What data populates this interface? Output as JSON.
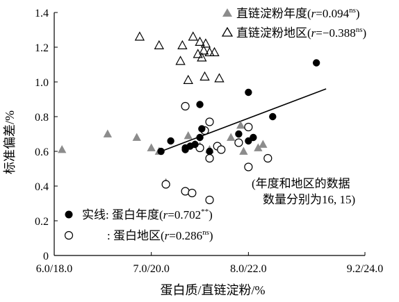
{
  "chart_data": {
    "type": "scatter",
    "xlabel": "蛋白质/直链淀粉/%",
    "ylabel": "标准偏差/%",
    "x_ticks": [
      "6.0/18.0",
      "7.0/20.0",
      "8.0/22.0",
      "9.2/24.0"
    ],
    "x_tick_values": [
      6.0,
      7.0,
      8.0,
      9.2
    ],
    "xlim": [
      6.0,
      9.2
    ],
    "y_ticks": [
      "0",
      "0.2",
      "0.4",
      "0.6",
      "0.8",
      "1.0",
      "1.2",
      "1.4"
    ],
    "y_tick_values": [
      0,
      0.2,
      0.4,
      0.6,
      0.8,
      1.0,
      1.2,
      1.4
    ],
    "ylim": [
      0,
      1.4
    ],
    "x_axis_note": "x values expressed on the protein (%) scale; amylose scale shown in tick labels after the slash",
    "legend_top": {
      "amylose_year": {
        "label_pre": "直链淀粉年度(",
        "r_symbol": "r",
        "r_value": "=0.094",
        "sig": "ns",
        "label_post": ")"
      },
      "amylose_region": {
        "label_pre": "直链淀粉地区(",
        "r_symbol": "r",
        "r_value": "=−0.388",
        "sig": "ns",
        "label_post": ")"
      }
    },
    "legend_bottom": {
      "protein_year": {
        "label_pre": "实线: 蛋白年度(",
        "r_symbol": "r",
        "r_value": "=0.702",
        "sig": "**",
        "label_post": ")"
      },
      "protein_region": {
        "label_pre": ": 蛋白地区(",
        "r_symbol": "r",
        "r_value": "=0.286",
        "sig": "ns",
        "label_post": ")"
      }
    },
    "note_lines": [
      "(年度和地区的数据",
      "数量分别为16, 15)"
    ],
    "trendline": {
      "x": [
        7.1,
        8.8
      ],
      "y": [
        0.6,
        0.96
      ]
    },
    "series": [
      {
        "key": "protein_year",
        "marker": "filled-circle",
        "points": [
          [
            7.1,
            0.6
          ],
          [
            7.2,
            0.66
          ],
          [
            7.35,
            0.61
          ],
          [
            7.4,
            0.63
          ],
          [
            7.45,
            0.64
          ],
          [
            7.5,
            0.68
          ],
          [
            7.52,
            0.73
          ],
          [
            7.5,
            0.87
          ],
          [
            7.6,
            0.6
          ],
          [
            7.9,
            0.7
          ],
          [
            8.0,
            0.66
          ],
          [
            8.0,
            0.94
          ],
          [
            8.05,
            0.68
          ],
          [
            8.25,
            0.8
          ],
          [
            8.7,
            1.11
          ],
          [
            7.35,
            0.62
          ]
        ]
      },
      {
        "key": "protein_region",
        "marker": "open-circle",
        "points": [
          [
            7.15,
            0.41
          ],
          [
            7.35,
            0.86
          ],
          [
            7.35,
            0.37
          ],
          [
            7.42,
            0.36
          ],
          [
            7.5,
            0.62
          ],
          [
            7.55,
            0.72
          ],
          [
            7.6,
            0.77
          ],
          [
            7.6,
            0.56
          ],
          [
            7.68,
            0.63
          ],
          [
            7.72,
            0.61
          ],
          [
            7.9,
            0.65
          ],
          [
            8.0,
            0.74
          ],
          [
            8.0,
            0.51
          ],
          [
            8.2,
            0.56
          ],
          [
            7.6,
            0.32
          ]
        ]
      },
      {
        "key": "amylose_year",
        "marker": "filled-triangle",
        "points": [
          [
            6.08,
            0.61
          ],
          [
            6.55,
            0.7
          ],
          [
            6.85,
            0.68
          ],
          [
            7.0,
            0.62
          ],
          [
            7.08,
            0.6
          ],
          [
            7.15,
            0.42
          ],
          [
            7.38,
            0.69
          ],
          [
            7.5,
            0.63
          ],
          [
            7.6,
            0.57
          ],
          [
            7.6,
            0.61
          ],
          [
            7.82,
            0.68
          ],
          [
            7.92,
            0.75
          ],
          [
            7.95,
            0.6
          ],
          [
            8.1,
            0.62
          ],
          [
            8.15,
            0.64
          ],
          [
            7.45,
            0.64
          ]
        ]
      },
      {
        "key": "amylose_region",
        "marker": "open-triangle",
        "points": [
          [
            6.88,
            1.26
          ],
          [
            7.08,
            1.21
          ],
          [
            7.3,
            1.12
          ],
          [
            7.32,
            1.21
          ],
          [
            7.38,
            1.01
          ],
          [
            7.43,
            1.26
          ],
          [
            7.48,
            1.16
          ],
          [
            7.5,
            1.23
          ],
          [
            7.52,
            1.14
          ],
          [
            7.54,
            1.18
          ],
          [
            7.55,
            1.03
          ],
          [
            7.56,
            1.22
          ],
          [
            7.6,
            1.17
          ],
          [
            7.65,
            1.17
          ],
          [
            7.7,
            1.02
          ]
        ]
      }
    ]
  }
}
